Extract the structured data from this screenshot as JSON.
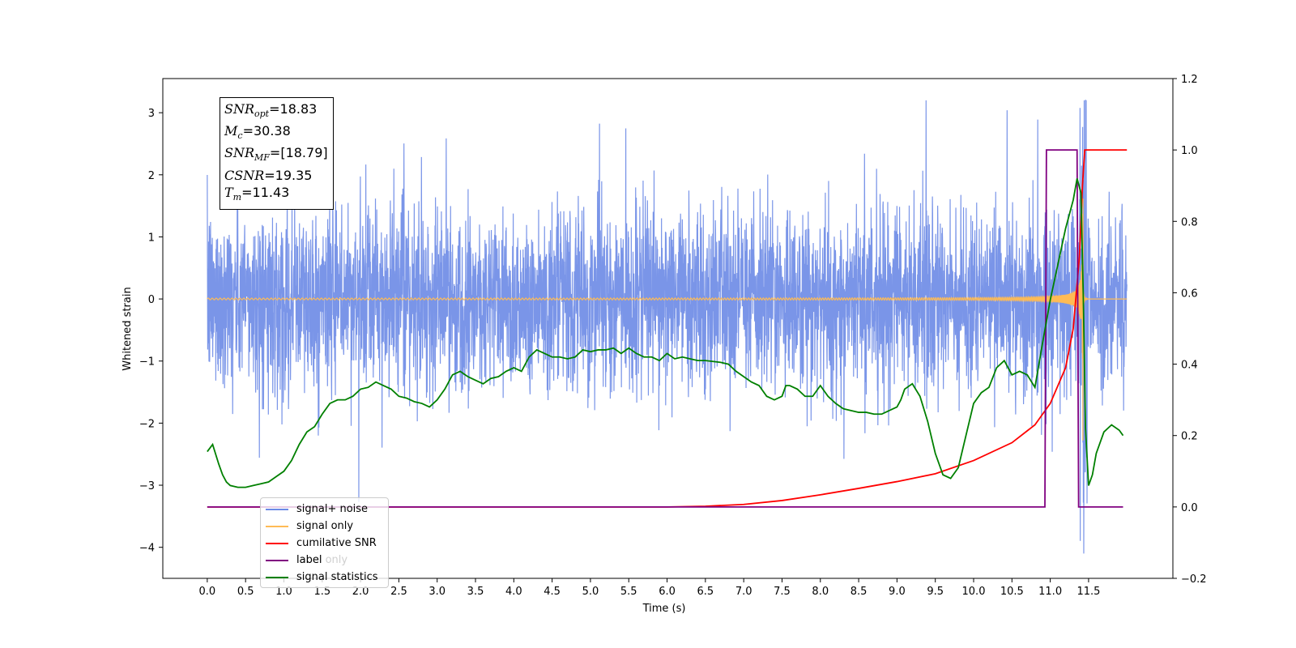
{
  "chart_data": {
    "type": "line",
    "xlabel": "Time (s)",
    "ylabel_left": "Whitened strain",
    "xlim": [
      -0.58,
      12.6
    ],
    "ylim_left": [
      -4.5,
      3.55
    ],
    "ylim_right": [
      -0.2,
      1.2
    ],
    "x_ticks": [
      "0.0",
      "0.5",
      "1.0",
      "1.5",
      "2.0",
      "2.5",
      "3.0",
      "3.5",
      "4.0",
      "4.5",
      "5.0",
      "5.5",
      "6.0",
      "6.5",
      "7.0",
      "7.5",
      "8.0",
      "8.5",
      "9.0",
      "9.5",
      "10.0",
      "10.5",
      "11.0",
      "11.5"
    ],
    "y_ticks_left": [
      "3",
      "2",
      "1",
      "0",
      "−1",
      "−2",
      "−3",
      "−4"
    ],
    "y_ticks_right": [
      "1.2",
      "1.0",
      "0.8",
      "0.6",
      "0.4",
      "0.2",
      "0.0",
      "−0.2"
    ],
    "grid": false,
    "legend_position": "lower-left",
    "annotation": {
      "snr_opt": "=18.83",
      "mc": "=30.38",
      "snr_mf": "=[18.79]",
      "csnr": "=19.35",
      "tm": "=11.43"
    },
    "series": [
      {
        "name": "signal+ noise",
        "color": "#6b8ae6",
        "axis": "left",
        "description_values": {
          "x_start": 0.0,
          "x_end": 12.0,
          "amplitude_range": [
            -4.1,
            3.2
          ]
        }
      },
      {
        "name": "signal only",
        "color": "#ffbb55",
        "axis": "left",
        "chirp": {
          "x_start": 0.0,
          "merger_x": 11.43,
          "x_end": 12.0,
          "peak_amplitude": 2.9
        }
      },
      {
        "name": "cumilative SNR",
        "color": "#ff0000",
        "axis": "right",
        "points": [
          [
            0.0,
            0.0
          ],
          [
            6.0,
            0.0
          ],
          [
            6.5,
            0.002
          ],
          [
            7.0,
            0.007
          ],
          [
            7.5,
            0.018
          ],
          [
            8.0,
            0.034
          ],
          [
            8.5,
            0.052
          ],
          [
            9.0,
            0.071
          ],
          [
            9.5,
            0.093
          ],
          [
            10.0,
            0.13
          ],
          [
            10.5,
            0.18
          ],
          [
            10.8,
            0.23
          ],
          [
            11.0,
            0.29
          ],
          [
            11.2,
            0.39
          ],
          [
            11.3,
            0.5
          ],
          [
            11.38,
            0.7
          ],
          [
            11.42,
            0.9
          ],
          [
            11.45,
            1.0
          ],
          [
            12.0,
            1.0
          ]
        ]
      },
      {
        "name": "label",
        "color": "#800080",
        "axis": "right",
        "points": [
          [
            0.0,
            0.0
          ],
          [
            10.93,
            0.0
          ],
          [
            10.95,
            1.0
          ],
          [
            11.35,
            1.0
          ],
          [
            11.37,
            0.0
          ],
          [
            11.95,
            0.0
          ]
        ]
      },
      {
        "name": "label only",
        "color": "#800080",
        "axis": "right",
        "hidden_behind_legend": true
      },
      {
        "name": "signal statistics",
        "color": "#008000",
        "axis": "right",
        "points": [
          [
            0.0,
            0.155
          ],
          [
            0.07,
            0.175
          ],
          [
            0.15,
            0.12
          ],
          [
            0.2,
            0.09
          ],
          [
            0.25,
            0.07
          ],
          [
            0.3,
            0.06
          ],
          [
            0.4,
            0.055
          ],
          [
            0.5,
            0.055
          ],
          [
            0.6,
            0.06
          ],
          [
            0.7,
            0.065
          ],
          [
            0.8,
            0.07
          ],
          [
            0.9,
            0.085
          ],
          [
            1.0,
            0.1
          ],
          [
            1.1,
            0.13
          ],
          [
            1.2,
            0.175
          ],
          [
            1.3,
            0.21
          ],
          [
            1.4,
            0.225
          ],
          [
            1.5,
            0.26
          ],
          [
            1.6,
            0.29
          ],
          [
            1.7,
            0.3
          ],
          [
            1.8,
            0.3
          ],
          [
            1.9,
            0.31
          ],
          [
            2.0,
            0.33
          ],
          [
            2.1,
            0.335
          ],
          [
            2.2,
            0.35
          ],
          [
            2.3,
            0.34
          ],
          [
            2.4,
            0.33
          ],
          [
            2.5,
            0.31
          ],
          [
            2.6,
            0.305
          ],
          [
            2.7,
            0.295
          ],
          [
            2.8,
            0.29
          ],
          [
            2.9,
            0.28
          ],
          [
            3.0,
            0.3
          ],
          [
            3.1,
            0.33
          ],
          [
            3.2,
            0.37
          ],
          [
            3.3,
            0.38
          ],
          [
            3.4,
            0.365
          ],
          [
            3.5,
            0.355
          ],
          [
            3.6,
            0.345
          ],
          [
            3.7,
            0.36
          ],
          [
            3.8,
            0.365
          ],
          [
            3.9,
            0.38
          ],
          [
            4.0,
            0.39
          ],
          [
            4.1,
            0.38
          ],
          [
            4.2,
            0.42
          ],
          [
            4.3,
            0.44
          ],
          [
            4.4,
            0.43
          ],
          [
            4.5,
            0.42
          ],
          [
            4.6,
            0.42
          ],
          [
            4.7,
            0.415
          ],
          [
            4.8,
            0.42
          ],
          [
            4.9,
            0.44
          ],
          [
            5.0,
            0.435
          ],
          [
            5.1,
            0.44
          ],
          [
            5.2,
            0.44
          ],
          [
            5.3,
            0.445
          ],
          [
            5.4,
            0.43
          ],
          [
            5.5,
            0.445
          ],
          [
            5.6,
            0.43
          ],
          [
            5.7,
            0.42
          ],
          [
            5.8,
            0.42
          ],
          [
            5.9,
            0.41
          ],
          [
            6.0,
            0.43
          ],
          [
            6.1,
            0.415
          ],
          [
            6.2,
            0.42
          ],
          [
            6.3,
            0.415
          ],
          [
            6.4,
            0.41
          ],
          [
            6.5,
            0.41
          ],
          [
            6.7,
            0.405
          ],
          [
            6.8,
            0.4
          ],
          [
            6.9,
            0.38
          ],
          [
            7.0,
            0.365
          ],
          [
            7.1,
            0.35
          ],
          [
            7.2,
            0.34
          ],
          [
            7.3,
            0.31
          ],
          [
            7.4,
            0.3
          ],
          [
            7.5,
            0.31
          ],
          [
            7.55,
            0.34
          ],
          [
            7.6,
            0.34
          ],
          [
            7.7,
            0.33
          ],
          [
            7.8,
            0.31
          ],
          [
            7.9,
            0.31
          ],
          [
            8.0,
            0.34
          ],
          [
            8.1,
            0.31
          ],
          [
            8.2,
            0.29
          ],
          [
            8.3,
            0.275
          ],
          [
            8.4,
            0.27
          ],
          [
            8.5,
            0.265
          ],
          [
            8.6,
            0.265
          ],
          [
            8.7,
            0.26
          ],
          [
            8.8,
            0.26
          ],
          [
            8.9,
            0.27
          ],
          [
            9.0,
            0.28
          ],
          [
            9.05,
            0.3
          ],
          [
            9.1,
            0.33
          ],
          [
            9.2,
            0.345
          ],
          [
            9.3,
            0.31
          ],
          [
            9.4,
            0.24
          ],
          [
            9.5,
            0.15
          ],
          [
            9.6,
            0.09
          ],
          [
            9.7,
            0.08
          ],
          [
            9.8,
            0.11
          ],
          [
            9.9,
            0.2
          ],
          [
            10.0,
            0.29
          ],
          [
            10.1,
            0.32
          ],
          [
            10.2,
            0.335
          ],
          [
            10.3,
            0.39
          ],
          [
            10.4,
            0.41
          ],
          [
            10.5,
            0.37
          ],
          [
            10.6,
            0.38
          ],
          [
            10.7,
            0.37
          ],
          [
            10.8,
            0.335
          ],
          [
            10.9,
            0.46
          ],
          [
            11.0,
            0.58
          ],
          [
            11.1,
            0.68
          ],
          [
            11.2,
            0.78
          ],
          [
            11.3,
            0.86
          ],
          [
            11.35,
            0.92
          ],
          [
            11.4,
            0.88
          ],
          [
            11.43,
            0.6
          ],
          [
            11.46,
            0.22
          ],
          [
            11.5,
            0.06
          ],
          [
            11.55,
            0.09
          ],
          [
            11.6,
            0.15
          ],
          [
            11.7,
            0.21
          ],
          [
            11.8,
            0.23
          ],
          [
            11.9,
            0.215
          ],
          [
            11.95,
            0.2
          ]
        ]
      }
    ]
  }
}
